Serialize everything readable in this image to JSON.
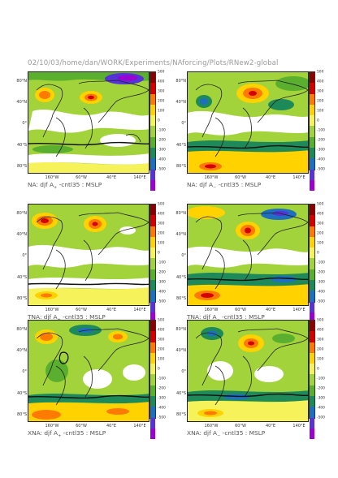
{
  "header": "02/10/03/home/dan/WORK/Experiments/NAforcing/Plots/RNew2-global",
  "lat_labels": [
    "80°N",
    "40°N",
    "0°",
    "40°S",
    "80°S"
  ],
  "lon_labels": [
    "160°W",
    "60°W",
    "40°E",
    "140°E"
  ],
  "colorbar": {
    "labels": [
      "500",
      "400",
      "300",
      "200",
      "100",
      "0",
      "-100",
      "-200",
      "-300",
      "-400",
      "-500"
    ],
    "colors": [
      "#8b0000",
      "#d40000",
      "#ff7a00",
      "#ffd200",
      "#f6f35a",
      "#a2d33a",
      "#5aaf2f",
      "#1f8a59",
      "#1f6fbf",
      "#5533d9",
      "#9a00d2"
    ]
  },
  "panels": [
    {
      "prefix": "NA: djf A",
      "sub": "+",
      "suffix": " -cntl35 : MSLP"
    },
    {
      "prefix": "NA: djf A",
      "sub": "−",
      "suffix": " -cntl35 : MSLP"
    },
    {
      "prefix": "TNA: djf A",
      "sub": "+",
      "suffix": " -cntl35 : MSLP"
    },
    {
      "prefix": "TNA: djf A",
      "sub": "−",
      "suffix": " -cntl35 : MSLP"
    },
    {
      "prefix": "XNA: djf A",
      "sub": "+",
      "suffix": " -cntl35 : MSLP"
    },
    {
      "prefix": "XNA: djf A",
      "sub": "−",
      "suffix": " -cntl35 : MSLP"
    }
  ]
}
